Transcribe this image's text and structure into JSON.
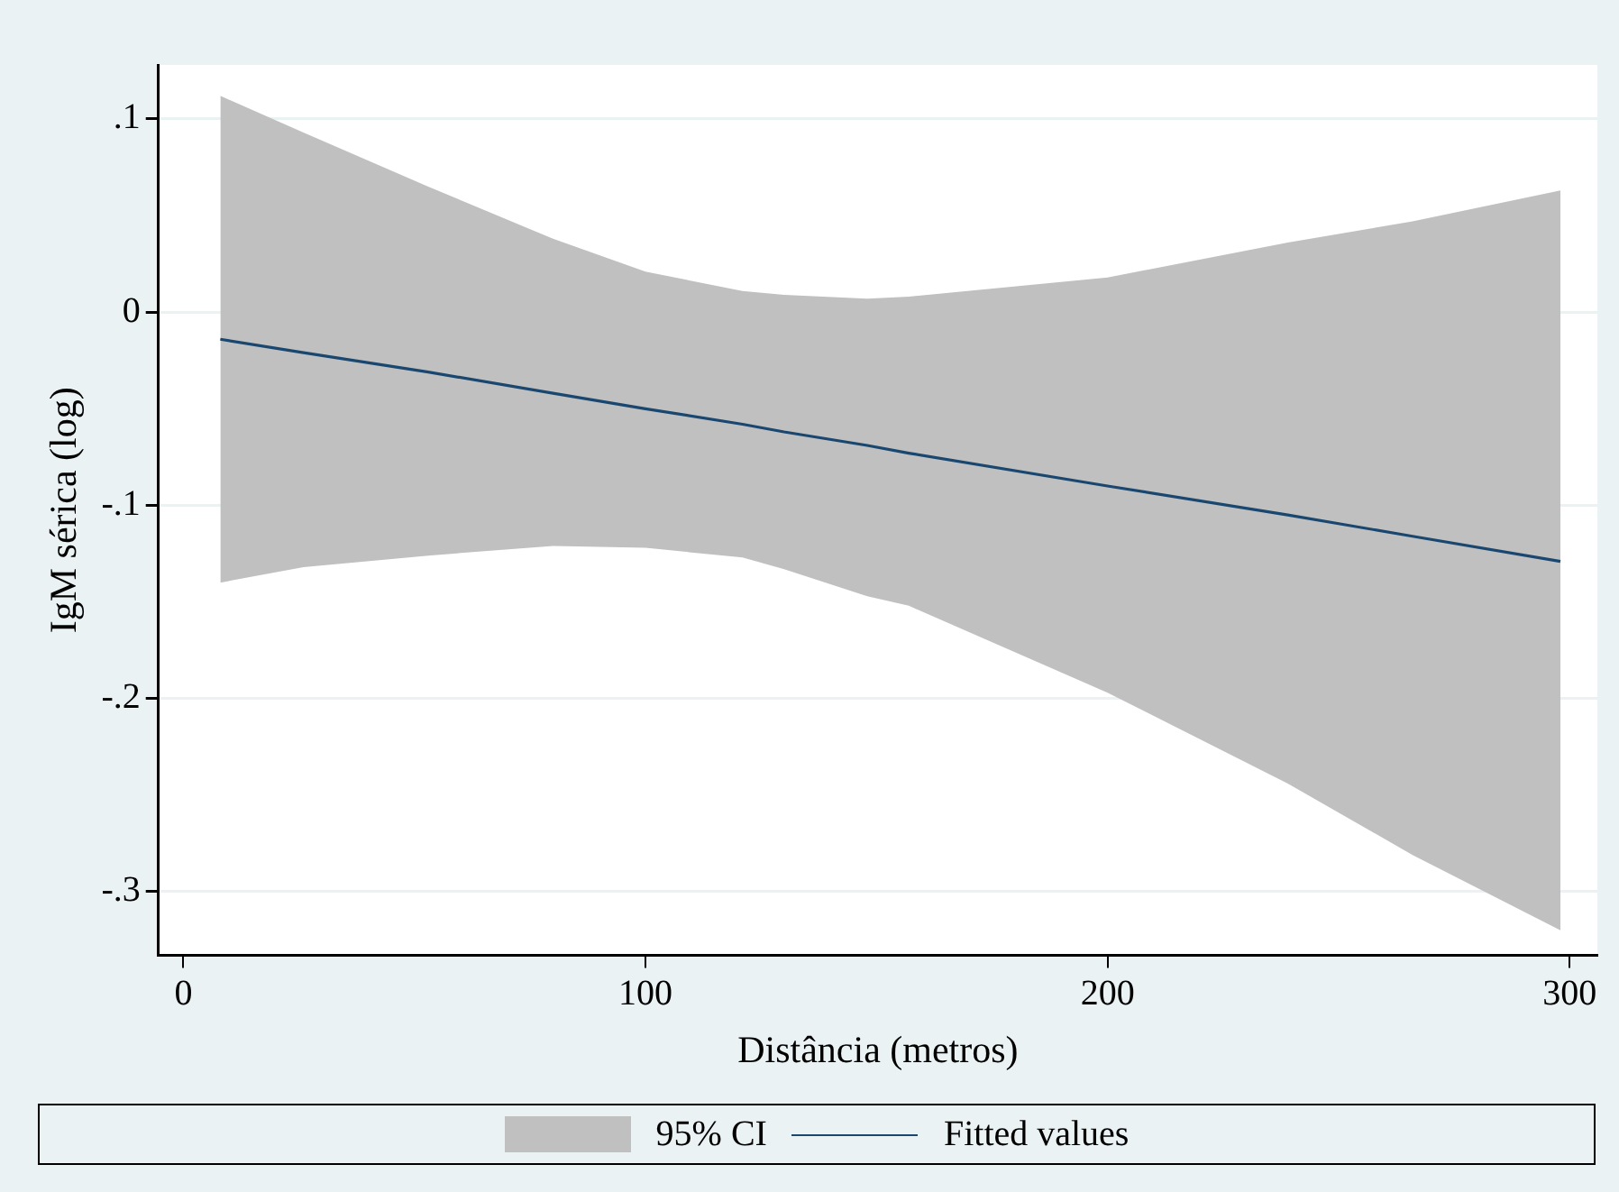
{
  "chart_data": {
    "type": "line",
    "xlabel": "Distância (metros)",
    "ylabel": "IgM sérica (log)",
    "x": [
      8,
      26,
      53,
      80,
      100,
      121,
      130,
      148,
      157,
      200,
      239,
      266,
      298
    ],
    "series": [
      {
        "name": "Fitted values",
        "type": "line",
        "color": "#1a476f",
        "values": [
          -0.014,
          -0.021,
          -0.031,
          -0.042,
          -0.05,
          -0.058,
          -0.062,
          -0.069,
          -0.073,
          -0.09,
          -0.105,
          -0.116,
          -0.129
        ],
        "lower": [
          -0.14,
          -0.132,
          -0.126,
          -0.121,
          -0.122,
          -0.127,
          -0.133,
          -0.147,
          -0.152,
          -0.197,
          -0.244,
          -0.281,
          -0.32
        ],
        "upper": [
          0.112,
          0.093,
          0.065,
          0.038,
          0.021,
          0.011,
          0.009,
          0.007,
          0.008,
          0.018,
          0.036,
          0.047,
          0.063
        ]
      }
    ],
    "annotations": [
      "95% CI"
    ],
    "xlim": [
      -5.4,
      306
    ],
    "xticks": [
      0,
      100,
      200,
      300
    ],
    "ylim": [
      -0.333,
      0.128
    ],
    "yticks": [
      {
        "value": 0.1,
        "label": ".1"
      },
      0,
      {
        "value": -0.1,
        "label": "-.1"
      },
      {
        "value": -0.2,
        "label": "-.2"
      },
      {
        "value": -0.3,
        "label": "-.3"
      }
    ],
    "grid": "y",
    "legend": "bottom",
    "marker": "none",
    "line_style": "solid"
  }
}
